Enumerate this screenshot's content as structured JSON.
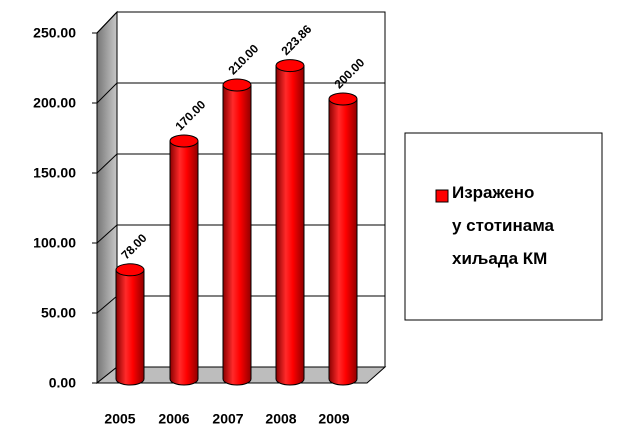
{
  "chart_data": {
    "type": "bar3d",
    "categories": [
      "2005",
      "2006",
      "2007",
      "2008",
      "2009"
    ],
    "series": [
      {
        "name": "Изражено\nу стотинама\nхиљада КМ",
        "color": "#ff0000",
        "values": [
          78,
          170,
          210,
          223.86,
          200
        ],
        "value_labels": [
          "78.00",
          "170.00",
          "210.00",
          "223.86",
          "200.00"
        ]
      }
    ],
    "ylim": [
      0,
      250
    ],
    "yticks": [
      {
        "value": 0,
        "label": "0.00"
      },
      {
        "value": 50,
        "label": "50.00"
      },
      {
        "value": 100,
        "label": "100.00"
      },
      {
        "value": 150,
        "label": "150.00"
      },
      {
        "value": 200,
        "label": "200.00"
      },
      {
        "value": 250,
        "label": "250.00"
      }
    ],
    "grid": true,
    "legend": "right"
  }
}
